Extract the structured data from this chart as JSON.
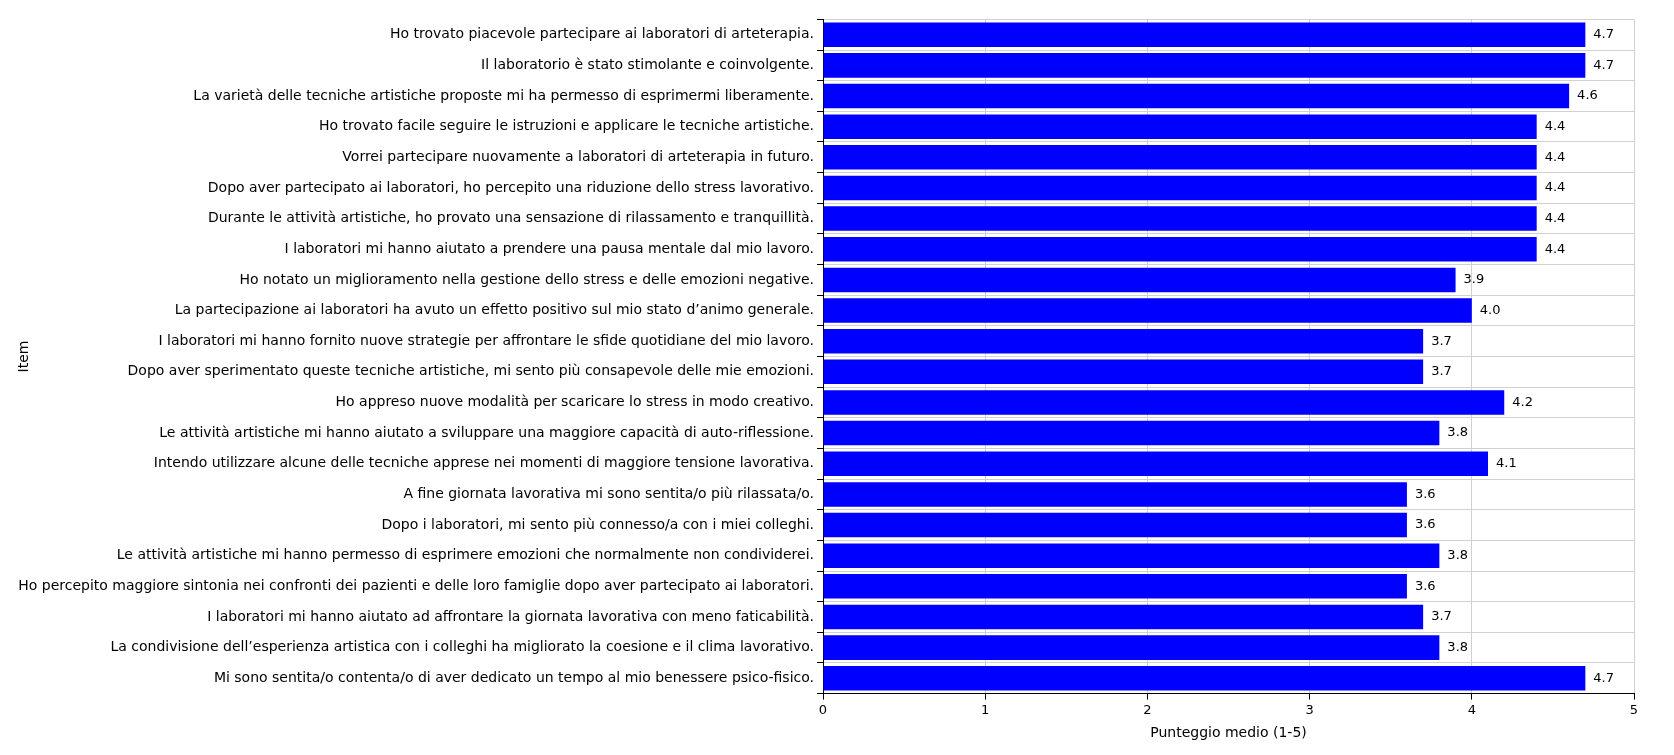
{
  "chart_data": {
    "type": "bar",
    "orientation": "horizontal",
    "xlabel": "Punteggio medio (1-5)",
    "ylabel": "Item",
    "categories": [
      "Ho trovato piacevole partecipare ai laboratori di arteterapia.",
      "Il laboratorio è stato stimolante e coinvolgente.",
      "La varietà delle tecniche artistiche proposte mi ha permesso di esprimermi liberamente.",
      "Ho trovato facile seguire le istruzioni e applicare le tecniche artistiche.",
      "Vorrei partecipare nuovamente a laboratori di arteterapia in futuro.",
      "Dopo aver partecipato ai laboratori, ho percepito una riduzione dello stress lavorativo.",
      "Durante le attività artistiche, ho provato una sensazione di rilassamento e tranquillità.",
      "I laboratori mi hanno aiutato a prendere una pausa mentale dal mio lavoro.",
      "Ho notato un miglioramento nella gestione dello stress e delle emozioni negative.",
      "La partecipazione ai laboratori ha avuto un effetto positivo sul mio stato d’animo generale.",
      "I laboratori mi hanno fornito nuove strategie per affrontare le sfide quotidiane del mio lavoro.",
      "Dopo aver sperimentato queste tecniche artistiche, mi sento più consapevole delle mie emozioni.",
      "Ho appreso nuove modalità per scaricare lo stress in modo creativo.",
      "Le attività artistiche mi hanno aiutato a sviluppare una maggiore capacità di auto-riflessione.",
      "Intendo utilizzare alcune delle tecniche apprese nei momenti di maggiore tensione lavorativa.",
      "A fine giornata lavorativa mi sono sentita/o più rilassata/o.",
      "Dopo i laboratori, mi sento più connesso/a con i miei colleghi.",
      "Le attività artistiche mi hanno permesso di esprimere emozioni che normalmente non condividerei.",
      "Ho percepito maggiore sintonia nei confronti dei pazienti e delle loro famiglie dopo aver partecipato ai laboratori.",
      "I laboratori mi hanno aiutato ad affrontare la giornata lavorativa con meno faticabilità.",
      "La condivisione dell’esperienza artistica con i colleghi ha migliorato la coesione e il clima lavorativo.",
      "Mi sono sentita/o contenta/o di aver dedicato un tempo al mio benessere psico-fisico."
    ],
    "values": [
      4.7,
      4.7,
      4.6,
      4.4,
      4.4,
      4.4,
      4.4,
      4.4,
      3.9,
      4.0,
      3.7,
      3.7,
      4.2,
      3.8,
      4.1,
      3.6,
      3.6,
      3.8,
      3.6,
      3.7,
      3.8,
      4.7
    ],
    "color": "#0000ff",
    "value_labels": [
      "4.7",
      "4.7",
      "4.6",
      "4.4",
      "4.4",
      "4.4",
      "4.4",
      "4.4",
      "3.9",
      "4.0",
      "3.7",
      "3.7",
      "4.2",
      "3.8",
      "4.1",
      "3.6",
      "3.6",
      "3.8",
      "3.6",
      "3.7",
      "3.8",
      "4.7"
    ],
    "xlim": [
      0,
      5
    ],
    "xticks": [
      0,
      1,
      2,
      3,
      4,
      5
    ],
    "grid": true,
    "legend": false
  }
}
